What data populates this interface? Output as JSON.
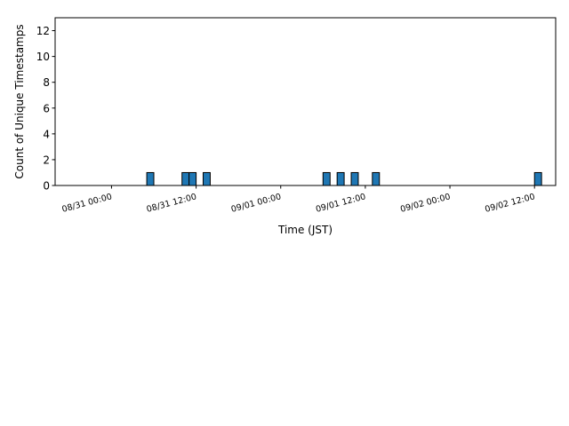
{
  "chart_data": {
    "type": "bar",
    "title": "",
    "xlabel": "Time (JST)",
    "ylabel": "Count of Unique Timestamps",
    "ylim": [
      0,
      13
    ],
    "yticks": [
      0,
      2,
      4,
      6,
      8,
      10,
      12
    ],
    "xlim": [
      "08/30 16:00",
      "09/02 15:00"
    ],
    "xticks": [
      {
        "label": "08/31 00:00",
        "hours": 24
      },
      {
        "label": "08/31 12:00",
        "hours": 36
      },
      {
        "label": "09/01 00:00",
        "hours": 48
      },
      {
        "label": "09/01 12:00",
        "hours": 60
      },
      {
        "label": "09/02 00:00",
        "hours": 72
      },
      {
        "label": "09/02 12:00",
        "hours": 84
      }
    ],
    "bar_width_hours": 1,
    "bars": [
      {
        "hour": "08/31 05:00",
        "value": 1
      },
      {
        "hour": "08/31 10:00",
        "value": 1
      },
      {
        "hour": "08/31 11:00",
        "value": 1
      },
      {
        "hour": "08/31 13:00",
        "value": 1
      },
      {
        "hour": "09/01 06:00",
        "value": 1
      },
      {
        "hour": "09/01 08:00",
        "value": 1
      },
      {
        "hour": "09/01 10:00",
        "value": 1
      },
      {
        "hour": "09/01 13:00",
        "value": 1
      },
      {
        "hour": "09/02 12:00",
        "value": 1
      }
    ],
    "colors": {
      "bar_fill": "#1f77b4",
      "bar_edge": "#000000"
    },
    "grid": false,
    "legend": "none"
  }
}
